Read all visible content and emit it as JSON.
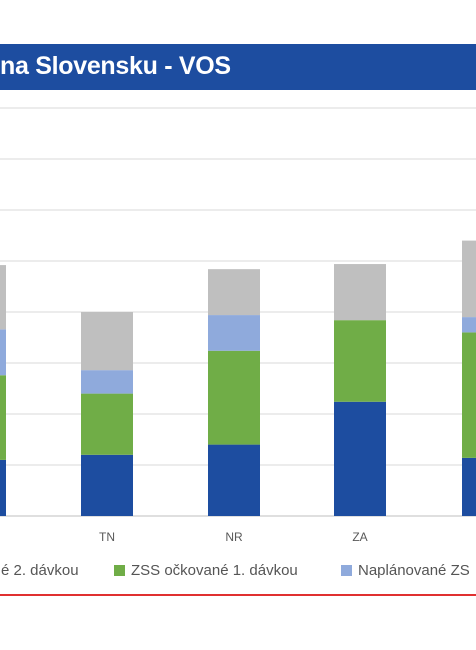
{
  "header": {
    "title": "na Slovensku - VOS"
  },
  "chart_data": {
    "type": "bar",
    "stacked": true,
    "categories": [
      "",
      "TN",
      "NR",
      "ZA",
      ""
    ],
    "series": [
      {
        "name": "é 2. dávkou",
        "color": "#1d4da0",
        "values": [
          55,
          60,
          70,
          112,
          57
        ]
      },
      {
        "name": "ZSS očkované 1. dávkou",
        "color": "#70ad47",
        "values": [
          83,
          60,
          92,
          80,
          123
        ]
      },
      {
        "name": "Naplánované ZS",
        "color": "#8faadc",
        "values": [
          45,
          23,
          35,
          0,
          15
        ]
      },
      {
        "name": "",
        "color": "#bfbfbf",
        "values": [
          63,
          57,
          45,
          55,
          75
        ]
      }
    ],
    "ylim": [
      0,
      400
    ],
    "grid": true,
    "legend_position": "bottom"
  }
}
